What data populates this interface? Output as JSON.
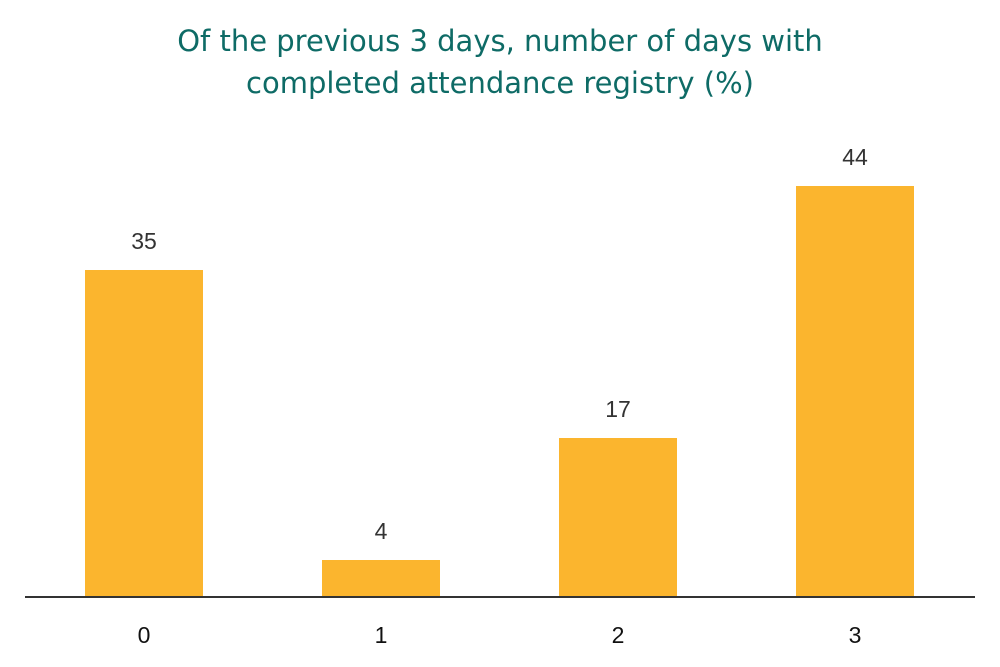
{
  "title_line1": "Of the previous 3 days, number of days with",
  "title_line2": "completed attendance registry (%)",
  "colors": {
    "bar": "#fbb52e",
    "title": "#0e6b66",
    "axis": "#333333"
  },
  "chart_data": {
    "type": "bar",
    "title": "Of the previous 3 days, number of days with completed attendance registry (%)",
    "categories": [
      "0",
      "1",
      "2",
      "3"
    ],
    "values": [
      35,
      4,
      17,
      44
    ],
    "xlabel": "",
    "ylabel": "",
    "ylim": [
      0,
      44
    ],
    "grid": false,
    "legend": null,
    "data_labels": [
      "35",
      "4",
      "17",
      "44"
    ]
  }
}
